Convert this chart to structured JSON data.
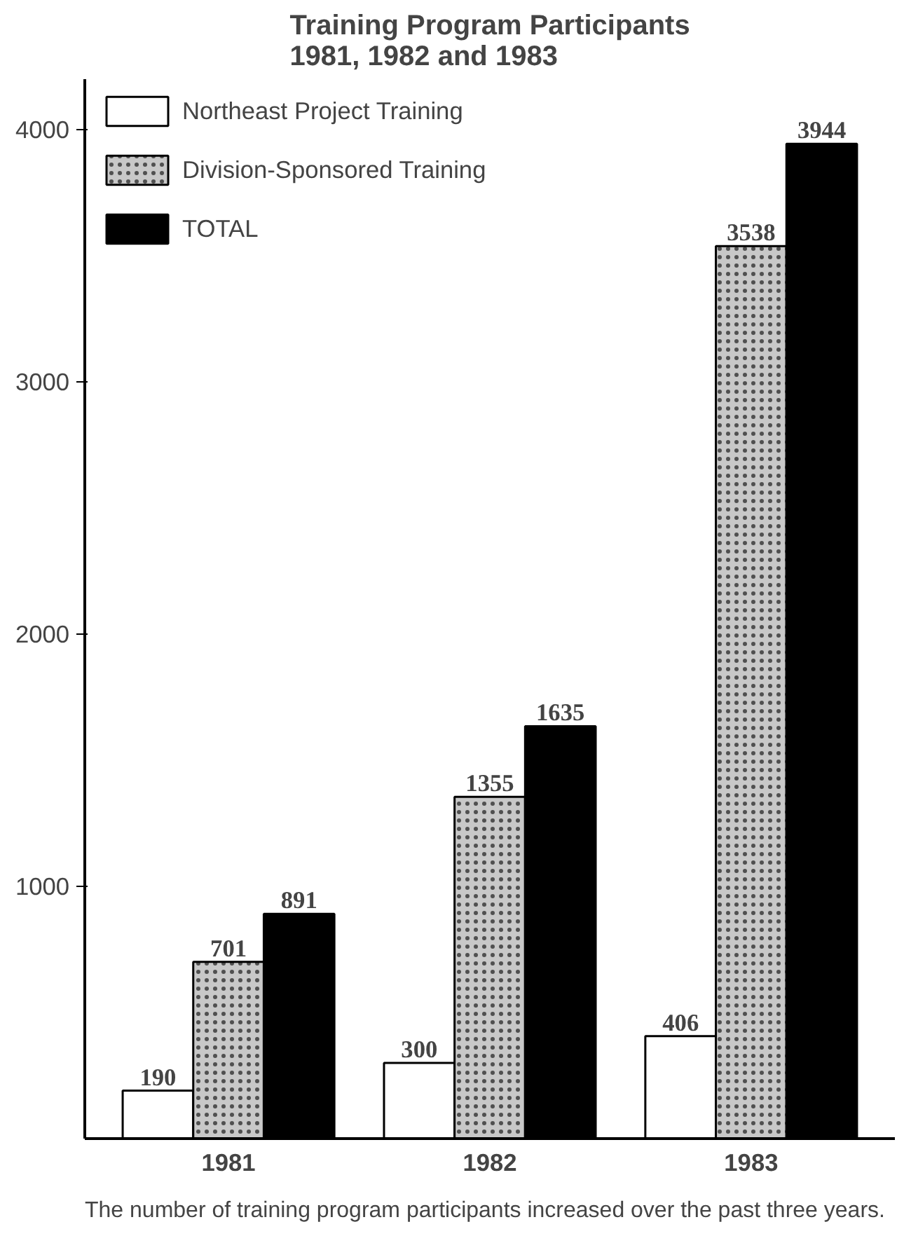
{
  "chart_data": {
    "type": "bar",
    "title": "Training Program Participants\n1981, 1982 and 1983",
    "categories": [
      "1981",
      "1982",
      "1983"
    ],
    "series": [
      {
        "name": "Northeast Project Training",
        "color": "#ffffff",
        "values": [
          190,
          300,
          406
        ]
      },
      {
        "name": "Division-Sponsored Training",
        "color": "#c8c8c8",
        "values": [
          701,
          1355,
          3538
        ]
      },
      {
        "name": "TOTAL",
        "color": "#000000",
        "values": [
          891,
          1635,
          3944
        ]
      }
    ],
    "ylim": [
      0,
      4200
    ],
    "yticks": [
      1000,
      2000,
      3000,
      4000
    ],
    "grid": false,
    "legend": "top left",
    "data_labels": true,
    "annotations": [
      "The number of training program participants increased over the  past three years."
    ]
  }
}
